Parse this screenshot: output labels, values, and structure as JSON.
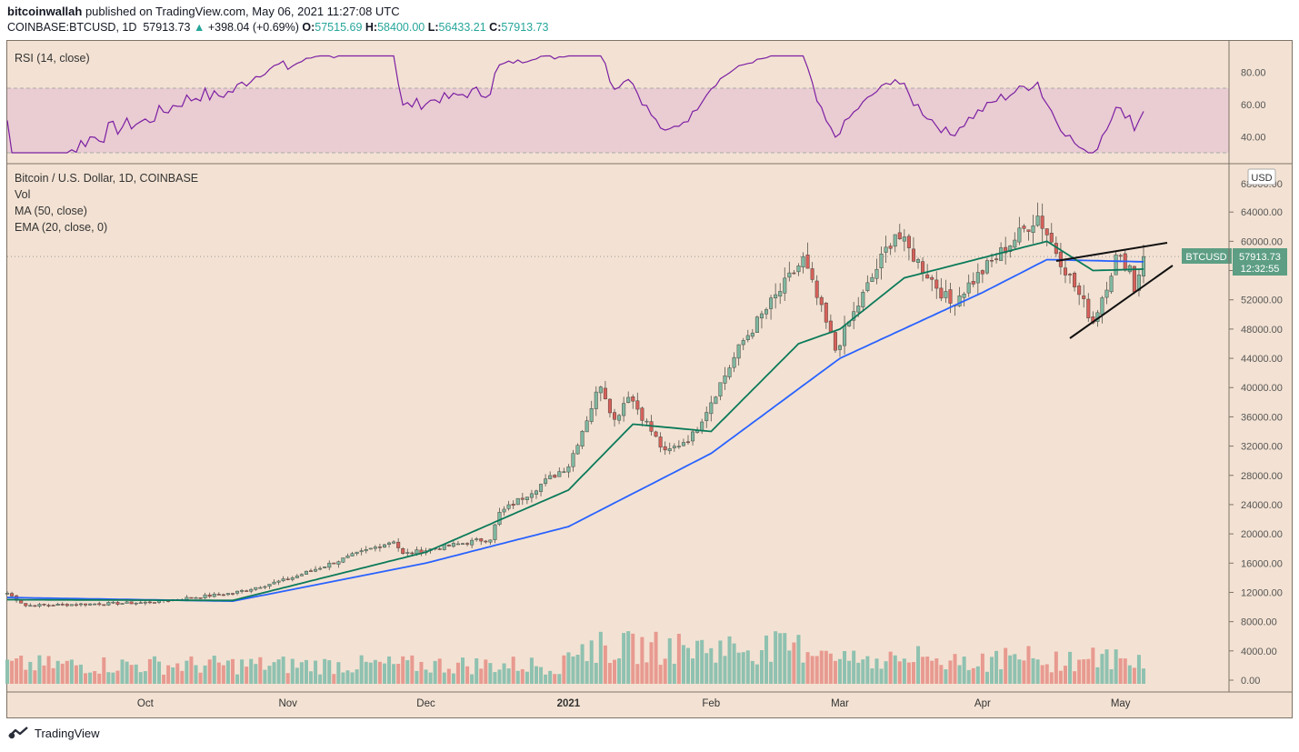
{
  "header": {
    "publisher": "bitcoinwallah",
    "published_text": " published on TradingView.com, May 06, 2021 11:27:08 UTC",
    "symbol": "COINBASE:BTCUSD, 1D",
    "last": "57913.73",
    "change": "+398.04 (+0.69%)",
    "o_label": "O:",
    "o": "57515.69",
    "h_label": "H:",
    "h": "58400.00",
    "l_label": "L:",
    "l": "56433.21",
    "c_label": "C:",
    "c": "57913.73",
    "up_arrow": "▲"
  },
  "rsi_pane": {
    "title": "RSI (14, close)",
    "ticks": [
      "80.00",
      "60.00",
      "40.00"
    ],
    "upper_band": 70,
    "lower_band": 30,
    "range": [
      25,
      92
    ]
  },
  "price_pane": {
    "legend": [
      "Bitcoin / U.S. Dollar, 1D, COINBASE",
      "Vol",
      "MA (50, close)",
      "EMA (20, close, 0)"
    ],
    "currency": "USD",
    "ticks": [
      "64000.00",
      "60000.00",
      "56000.00",
      "52000.00",
      "48000.00",
      "44000.00",
      "40000.00",
      "36000.00",
      "32000.00",
      "28000.00",
      "24000.00",
      "20000.00",
      "16000.00",
      "12000.00",
      "8000.00",
      "4000.00",
      "0.00"
    ],
    "top_tick_partial": "68000.00",
    "price_tag": {
      "symbol": "BTCUSD",
      "price": "57913.73",
      "countdown": "12:32:55"
    }
  },
  "x_axis": {
    "labels": [
      "Oct",
      "Nov",
      "Dec",
      "2021",
      "Feb",
      "Mar",
      "Apr",
      "May"
    ]
  },
  "footer": {
    "brand": "TradingView"
  },
  "colors": {
    "up": "#26a69a",
    "down": "#ef5350",
    "ma50": "#2962ff",
    "ema20": "#0b7a5a",
    "rsi": "#7b1fa2",
    "background": "#f3e2d3"
  },
  "chart_data": {
    "type": "candlestick",
    "title": "Bitcoin / U.S. Dollar, 1D, COINBASE",
    "x_range": [
      "2020-09-01",
      "2021-05-06"
    ],
    "y_range": [
      0,
      67000
    ],
    "key_points": [
      {
        "date": "2020-09-01",
        "close": 11900
      },
      {
        "date": "2020-09-05",
        "close": 10200
      },
      {
        "date": "2020-10-01",
        "close": 10600
      },
      {
        "date": "2020-10-20",
        "close": 11900
      },
      {
        "date": "2020-11-01",
        "close": 13800
      },
      {
        "date": "2020-11-24",
        "close": 19100
      },
      {
        "date": "2020-11-26",
        "close": 17200
      },
      {
        "date": "2020-12-15",
        "close": 19400
      },
      {
        "date": "2020-12-17",
        "close": 22800
      },
      {
        "date": "2021-01-01",
        "close": 29400
      },
      {
        "date": "2021-01-08",
        "close": 40600
      },
      {
        "date": "2021-01-11",
        "close": 35500
      },
      {
        "date": "2021-01-14",
        "close": 39200
      },
      {
        "date": "2021-01-22",
        "close": 31000
      },
      {
        "date": "2021-01-28",
        "close": 33500
      },
      {
        "date": "2021-02-08",
        "close": 46400
      },
      {
        "date": "2021-02-21",
        "close": 57500
      },
      {
        "date": "2021-02-28",
        "close": 45200
      },
      {
        "date": "2021-03-13",
        "close": 61200
      },
      {
        "date": "2021-03-25",
        "close": 51500
      },
      {
        "date": "2021-04-13",
        "close": 63500
      },
      {
        "date": "2021-04-25",
        "close": 49000
      },
      {
        "date": "2021-04-30",
        "close": 57700
      },
      {
        "date": "2021-05-03",
        "close": 56600
      },
      {
        "date": "2021-05-04",
        "close": 53500
      },
      {
        "date": "2021-05-06",
        "close": 57913.73
      }
    ],
    "series": [
      {
        "name": "MA (50, close)",
        "key_points": [
          [
            "2020-09-01",
            11300
          ],
          [
            "2020-10-20",
            10800
          ],
          [
            "2020-12-01",
            16000
          ],
          [
            "2021-01-01",
            21000
          ],
          [
            "2021-02-01",
            31000
          ],
          [
            "2021-03-01",
            44000
          ],
          [
            "2021-04-01",
            53000
          ],
          [
            "2021-04-15",
            57500
          ],
          [
            "2021-05-06",
            57200
          ]
        ]
      },
      {
        "name": "EMA (20, close, 0)",
        "key_points": [
          [
            "2020-09-01",
            11000
          ],
          [
            "2020-10-20",
            10900
          ],
          [
            "2020-12-01",
            17500
          ],
          [
            "2021-01-01",
            26000
          ],
          [
            "2021-01-15",
            35000
          ],
          [
            "2021-02-01",
            34000
          ],
          [
            "2021-02-20",
            46000
          ],
          [
            "2021-03-01",
            48000
          ],
          [
            "2021-03-15",
            55000
          ],
          [
            "2021-04-15",
            60000
          ],
          [
            "2021-04-25",
            56000
          ],
          [
            "2021-05-06",
            56200
          ]
        ]
      }
    ],
    "volume_range": [
      0,
      17000
    ]
  }
}
